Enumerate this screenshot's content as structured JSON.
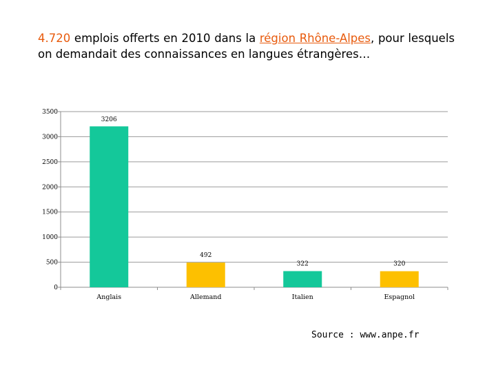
{
  "title": {
    "part1": "4.720",
    "part2": " emplois offerts en 2010 dans la ",
    "part3": "région Rhône-Alpes",
    "part4": ", pour lesquels on demandait des connaissances en langues étrangères…"
  },
  "source": "Source : www.anpe.fr",
  "colors": {
    "title_highlight": "#e85a0c",
    "teal": "#14c89a",
    "gold": "#fdc000",
    "axis": "#8c8c8c",
    "grid": "#9a9a9a"
  },
  "chart_data": {
    "type": "bar",
    "categories": [
      "Anglais",
      "Allemand",
      "Italien",
      "Espagnol"
    ],
    "values": [
      3206,
      492,
      322,
      320
    ],
    "value_labels": [
      "3206",
      "492",
      "322",
      "320"
    ],
    "bar_colors": [
      "#14c89a",
      "#fdc000",
      "#14c89a",
      "#fdc000"
    ],
    "ylim": [
      0,
      3500
    ],
    "yticks": [
      0,
      500,
      1000,
      1500,
      2000,
      2500,
      3000,
      3500
    ],
    "ytick_labels": [
      "0",
      "500",
      "1000",
      "1500",
      "2000",
      "2500",
      "3000",
      "3500"
    ],
    "grid": true,
    "legend": "none"
  }
}
